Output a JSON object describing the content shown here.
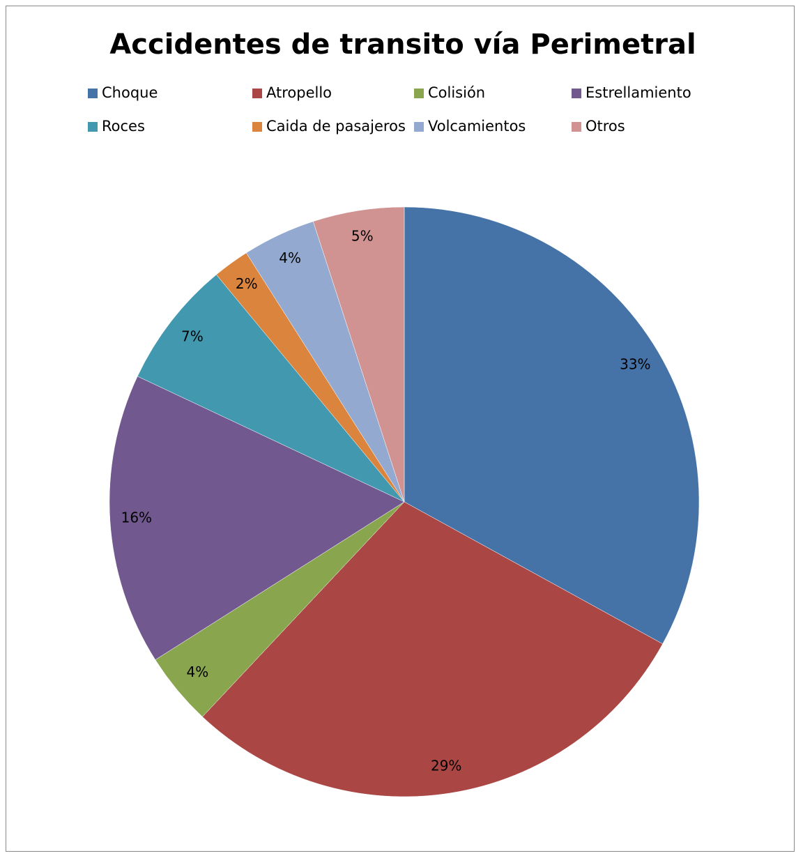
{
  "chart_data": {
    "type": "pie",
    "title": "Accidentes de transito vía Perimetral",
    "categories": [
      "Choque",
      "Atropello",
      "Colisión",
      "Estrellamiento",
      "Roces",
      "Caida de pasajeros",
      "Volcamientos",
      "Otros"
    ],
    "values": [
      33,
      29,
      4,
      16,
      7,
      2,
      4,
      5
    ],
    "value_labels": [
      "33%",
      "29%",
      "4%",
      "16%",
      "7%",
      "2%",
      "4%",
      "5%"
    ],
    "colors": [
      "#4572a7",
      "#aa4643",
      "#89a54e",
      "#71588f",
      "#4198af",
      "#db843d",
      "#93a9cf",
      "#d19392"
    ],
    "legend": "top"
  }
}
